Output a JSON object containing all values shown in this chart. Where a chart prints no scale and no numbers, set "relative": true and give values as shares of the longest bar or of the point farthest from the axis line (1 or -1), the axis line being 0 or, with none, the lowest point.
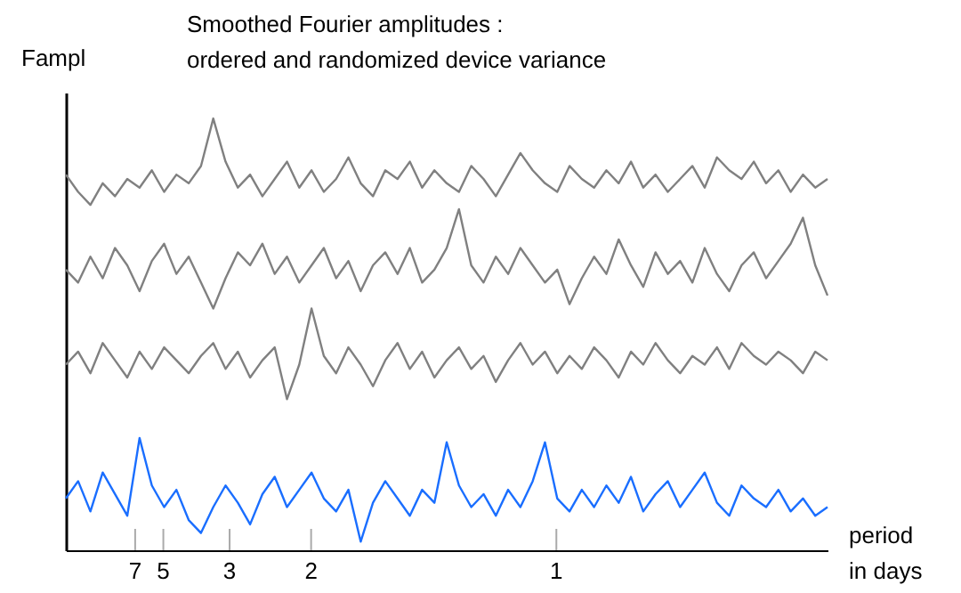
{
  "chart_data": {
    "type": "line",
    "title": "Smoothed  Fourier amplitudes  :",
    "subtitle": "ordered  and  randomized   device   variance",
    "ylabel": "Fampl",
    "xlabel": "period in days",
    "relative": true,
    "grid": false,
    "marker": "none",
    "line_style": "solid",
    "categories": [
      null,
      null,
      null,
      null,
      null,
      null,
      null,
      null,
      null,
      null,
      null,
      null,
      null,
      null,
      null,
      null,
      null,
      null,
      null,
      null,
      null,
      null,
      null,
      null,
      null,
      null,
      null,
      null,
      null,
      null,
      null,
      null,
      null,
      null,
      null,
      null,
      null,
      null,
      null,
      null,
      null,
      null,
      null,
      null,
      null,
      null,
      null,
      null,
      null,
      null,
      null,
      null,
      null,
      null,
      null,
      null,
      null,
      null,
      null,
      null,
      null,
      null,
      null
    ],
    "annotations": [
      "7",
      "5",
      "3",
      "2",
      "1"
    ],
    "series": [
      {
        "color": "#808080",
        "values": [
          0.87,
          0.83,
          0.8,
          0.85,
          0.82,
          0.86,
          0.84,
          0.88,
          0.83,
          0.87,
          0.85,
          0.89,
          1.0,
          0.9,
          0.84,
          0.87,
          0.82,
          0.86,
          0.9,
          0.84,
          0.88,
          0.83,
          0.86,
          0.91,
          0.85,
          0.82,
          0.88,
          0.86,
          0.9,
          0.84,
          0.88,
          0.85,
          0.83,
          0.89,
          0.86,
          0.82,
          0.87,
          0.92,
          0.88,
          0.85,
          0.83,
          0.89,
          0.86,
          0.84,
          0.88,
          0.85,
          0.9,
          0.84,
          0.87,
          0.83,
          0.86,
          0.89,
          0.84,
          0.91,
          0.88,
          0.86,
          0.9,
          0.85,
          0.88,
          0.83,
          0.87,
          0.84,
          0.86
        ]
      },
      {
        "color": "#808080",
        "values": [
          0.65,
          0.62,
          0.68,
          0.63,
          0.7,
          0.66,
          0.6,
          0.67,
          0.71,
          0.64,
          0.68,
          0.62,
          0.56,
          0.63,
          0.69,
          0.66,
          0.71,
          0.64,
          0.68,
          0.62,
          0.66,
          0.7,
          0.63,
          0.67,
          0.6,
          0.66,
          0.69,
          0.64,
          0.7,
          0.62,
          0.65,
          0.7,
          0.79,
          0.66,
          0.62,
          0.68,
          0.64,
          0.7,
          0.66,
          0.62,
          0.65,
          0.57,
          0.63,
          0.68,
          0.64,
          0.72,
          0.66,
          0.61,
          0.69,
          0.64,
          0.67,
          0.62,
          0.7,
          0.64,
          0.6,
          0.66,
          0.69,
          0.63,
          0.67,
          0.71,
          0.77,
          0.66,
          0.59
        ]
      },
      {
        "color": "#808080",
        "values": [
          0.43,
          0.46,
          0.41,
          0.48,
          0.44,
          0.4,
          0.46,
          0.42,
          0.47,
          0.44,
          0.41,
          0.45,
          0.48,
          0.42,
          0.46,
          0.4,
          0.44,
          0.47,
          0.35,
          0.43,
          0.56,
          0.45,
          0.41,
          0.47,
          0.43,
          0.38,
          0.44,
          0.48,
          0.42,
          0.46,
          0.4,
          0.44,
          0.47,
          0.42,
          0.45,
          0.39,
          0.44,
          0.48,
          0.43,
          0.46,
          0.41,
          0.45,
          0.42,
          0.47,
          0.44,
          0.4,
          0.46,
          0.43,
          0.48,
          0.44,
          0.41,
          0.45,
          0.43,
          0.47,
          0.42,
          0.48,
          0.45,
          0.43,
          0.46,
          0.44,
          0.41,
          0.46,
          0.44
        ]
      },
      {
        "color": "#1a6eff",
        "values": [
          0.12,
          0.16,
          0.09,
          0.18,
          0.13,
          0.08,
          0.26,
          0.15,
          0.1,
          0.14,
          0.07,
          0.04,
          0.1,
          0.15,
          0.11,
          0.06,
          0.13,
          0.17,
          0.1,
          0.14,
          0.18,
          0.12,
          0.09,
          0.14,
          0.02,
          0.11,
          0.16,
          0.12,
          0.08,
          0.14,
          0.11,
          0.25,
          0.15,
          0.1,
          0.13,
          0.08,
          0.14,
          0.1,
          0.16,
          0.25,
          0.12,
          0.09,
          0.14,
          0.1,
          0.15,
          0.11,
          0.17,
          0.09,
          0.13,
          0.16,
          0.1,
          0.14,
          0.18,
          0.11,
          0.08,
          0.15,
          0.12,
          0.1,
          0.14,
          0.09,
          0.12,
          0.08,
          0.1
        ]
      }
    ]
  }
}
